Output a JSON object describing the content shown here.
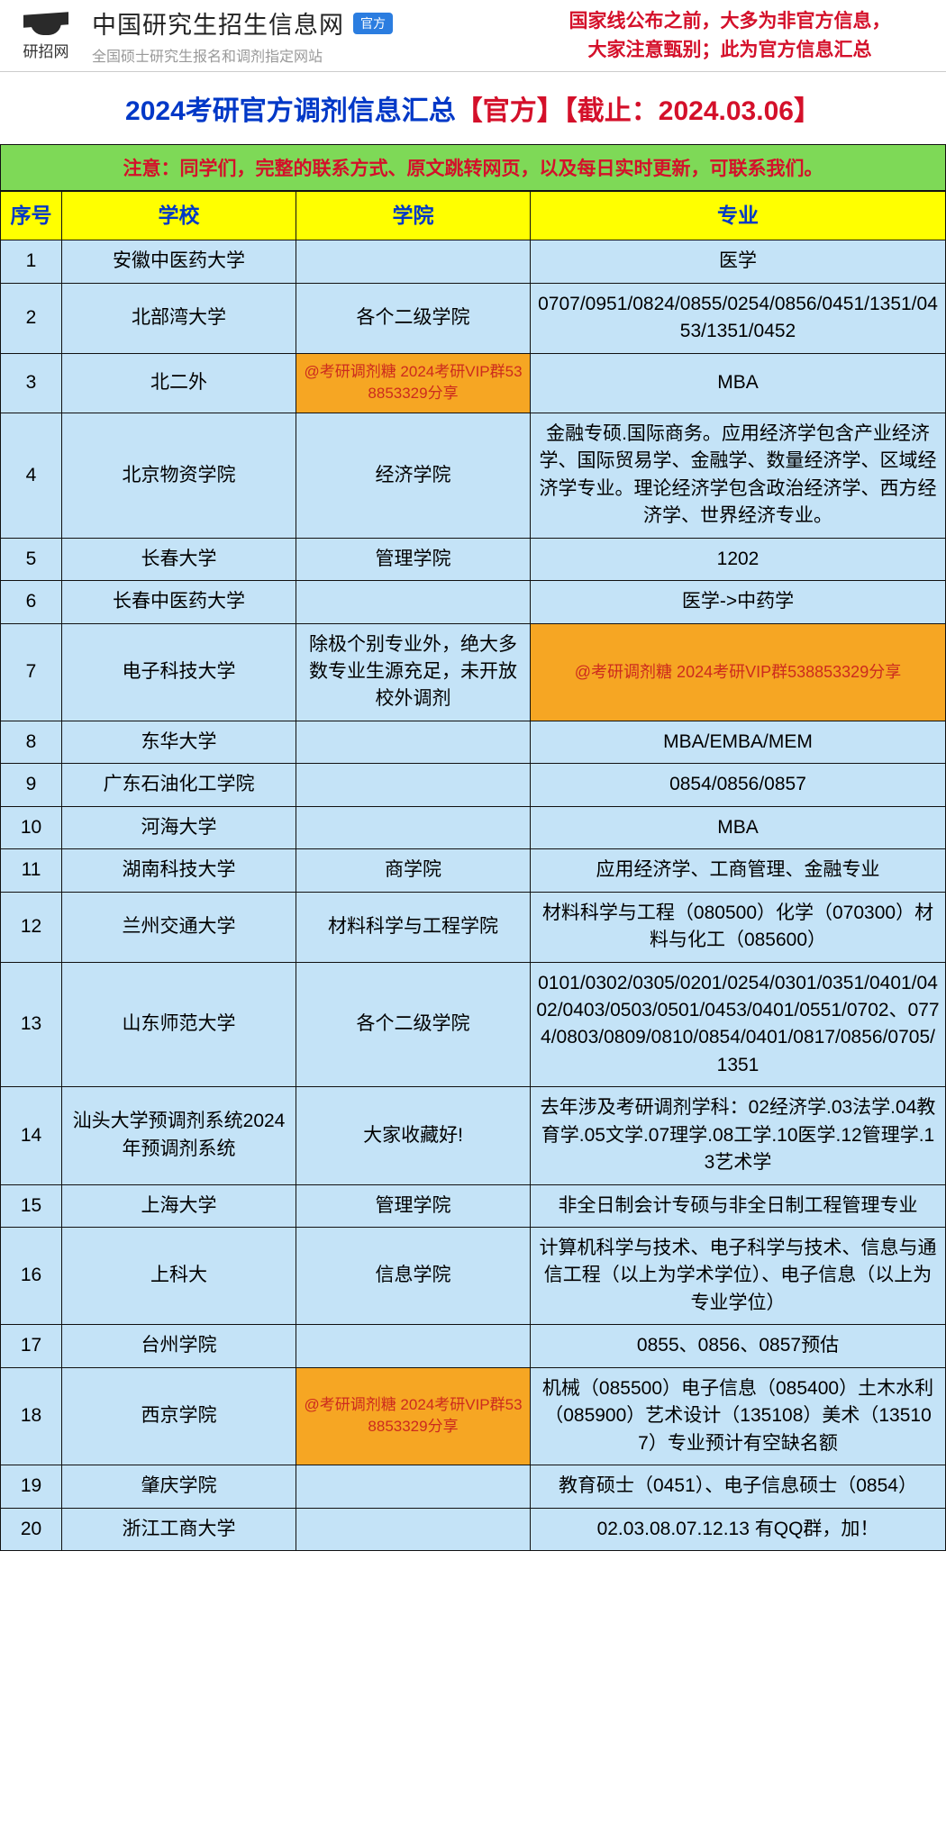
{
  "header": {
    "logo_label": "研招网",
    "site_title": "中国研究生招生信息网",
    "badge": "官方",
    "site_sub": "全国硕士研究生报名和调剂指定网站",
    "warning_line1": "国家线公布之前，大多为非官方信息，",
    "warning_line2": "大家注意甄别；此为官方信息汇总"
  },
  "title": {
    "prefix": "2024考研官方调剂信息汇总",
    "red1": "【官方】",
    "red2": "【截止：2024.03.06】"
  },
  "notice": "注意：同学们，完整的联系方式、原文跳转网页，以及每日实时更新，可联系我们。",
  "columns": {
    "idx": "序号",
    "school": "学校",
    "college": "学院",
    "major": "专业"
  },
  "promo_text": "@考研调剂糖   2024考研VIP群538853329分享",
  "rows": [
    {
      "idx": "1",
      "school": "安徽中医药大学",
      "college": "",
      "major": "医学"
    },
    {
      "idx": "2",
      "school": "北部湾大学",
      "college": "各个二级学院",
      "major": "0707/0951/0824/0855/0254/0856/0451/1351/0453/1351/0452"
    },
    {
      "idx": "3",
      "school": "北二外",
      "college_promo": true,
      "major": "MBA"
    },
    {
      "idx": "4",
      "school": "北京物资学院",
      "college": "经济学院",
      "major": "金融专硕.国际商务。应用经济学包含产业经济学、国际贸易学、金融学、数量经济学、区域经济学专业。理论经济学包含政治经济学、西方经济学、世界经济专业。"
    },
    {
      "idx": "5",
      "school": "长春大学",
      "college": "管理学院",
      "major": "1202"
    },
    {
      "idx": "6",
      "school": "长春中医药大学",
      "college": "",
      "major": "医学->中药学"
    },
    {
      "idx": "7",
      "school": "电子科技大学",
      "college": "除极个别专业外，绝大多数专业生源充足，未开放校外调剂",
      "major_promo": true
    },
    {
      "idx": "8",
      "school": "东华大学",
      "college": "",
      "major": "MBA/EMBA/MEM"
    },
    {
      "idx": "9",
      "school": "广东石油化工学院",
      "college": "",
      "major": "0854/0856/0857"
    },
    {
      "idx": "10",
      "school": "河海大学",
      "college": "",
      "major": "MBA"
    },
    {
      "idx": "11",
      "school": "湖南科技大学",
      "college": "商学院",
      "major": "应用经济学、工商管理、金融专业"
    },
    {
      "idx": "12",
      "school": "兰州交通大学",
      "college": "材料科学与工程学院",
      "major": "材料科学与工程（080500）化学（070300）材料与化工（085600）"
    },
    {
      "idx": "13",
      "school": "山东师范大学",
      "college": "各个二级学院",
      "major": "0101/0302/0305/0201/0254/0301/0351/0401/0402/0403/0503/0501/0453/0401/0551/0702、0774/0803/0809/0810/0854/0401/0817/0856/0705/1351"
    },
    {
      "idx": "14",
      "school": "汕头大学预调剂系统2024年预调剂系统",
      "college": "大家收藏好!",
      "major": "去年涉及考研调剂学科：02经济学.03法学.04教育学.05文学.07理学.08工学.10医学.12管理学.13艺术学"
    },
    {
      "idx": "15",
      "school": "上海大学",
      "college": "管理学院",
      "major": "非全日制会计专硕与非全日制工程管理专业"
    },
    {
      "idx": "16",
      "school": "上科大",
      "college": "信息学院",
      "major": "计算机科学与技术、电子科学与技术、信息与通信工程（以上为学术学位）、电子信息（以上为专业学位）"
    },
    {
      "idx": "17",
      "school": "台州学院",
      "college": "",
      "major": "0855、0856、0857预估"
    },
    {
      "idx": "18",
      "school": "西京学院",
      "college_promo": true,
      "major": "机械（085500）电子信息（085400）土木水利（085900）艺术设计（135108）美术（135107）专业预计有空缺名额"
    },
    {
      "idx": "19",
      "school": "肇庆学院",
      "college": "",
      "major": "教育硕士（0451）、电子信息硕士（0854）"
    },
    {
      "idx": "20",
      "school": "浙江工商大学",
      "college": "",
      "major": "02.03.08.07.12.13  有QQ群，加！"
    }
  ],
  "colors": {
    "row_bg": "#c4e3f7",
    "header_bg": "#ffff00",
    "notice_bg": "#7ed957",
    "promo_bg": "#f6a623",
    "title_blue": "#0038c7",
    "text_red": "#d4102a",
    "border": "#111111"
  }
}
